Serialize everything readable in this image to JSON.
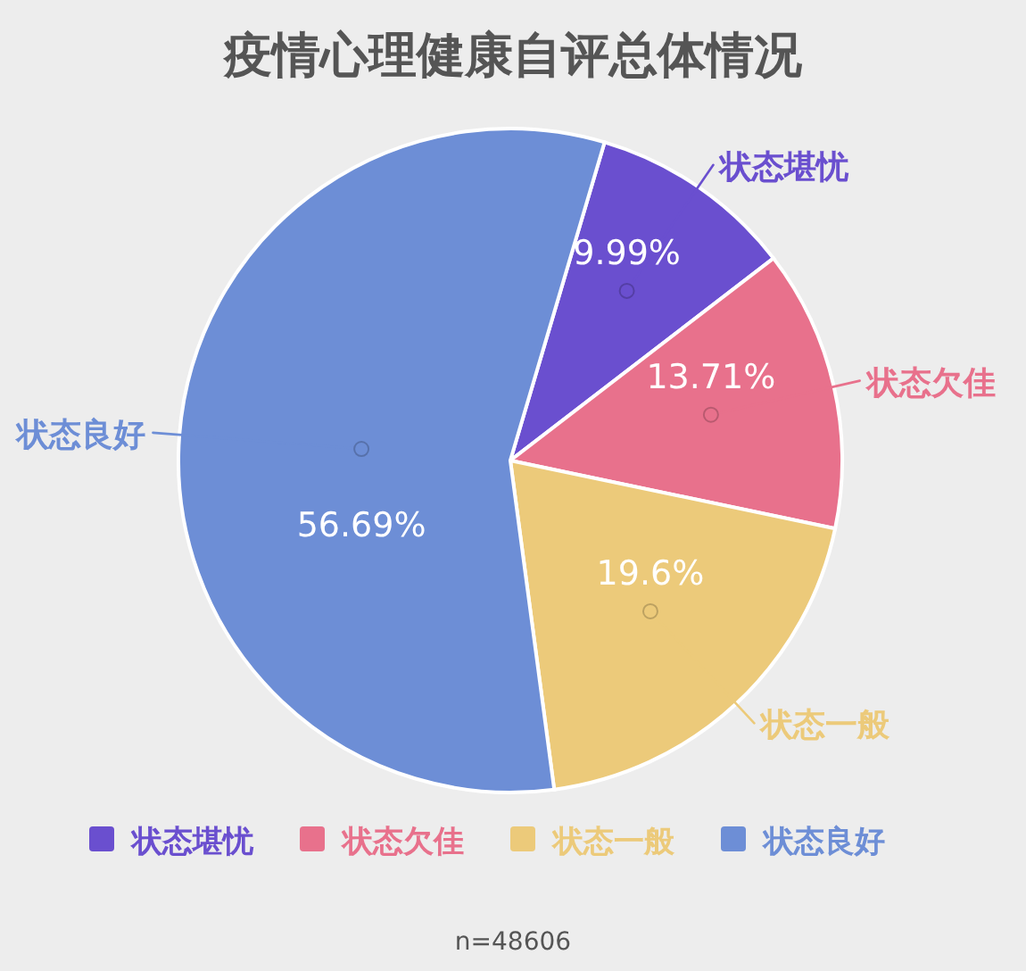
{
  "chart_data": {
    "type": "pie",
    "title": "疫情心理健康自评总体情况",
    "categories": [
      "状态堪忧",
      "状态欠佳",
      "状态一般",
      "状态良好"
    ],
    "values": [
      9.99,
      13.71,
      19.6,
      56.69
    ],
    "colors": [
      "#6a4fcf",
      "#e8718c",
      "#ecca7a",
      "#6d8ed6"
    ],
    "value_labels": [
      "9.99%",
      "13.71%",
      "19.6%",
      "56.69%"
    ],
    "legend": "bottom",
    "annotations": [
      "n=48606"
    ]
  }
}
